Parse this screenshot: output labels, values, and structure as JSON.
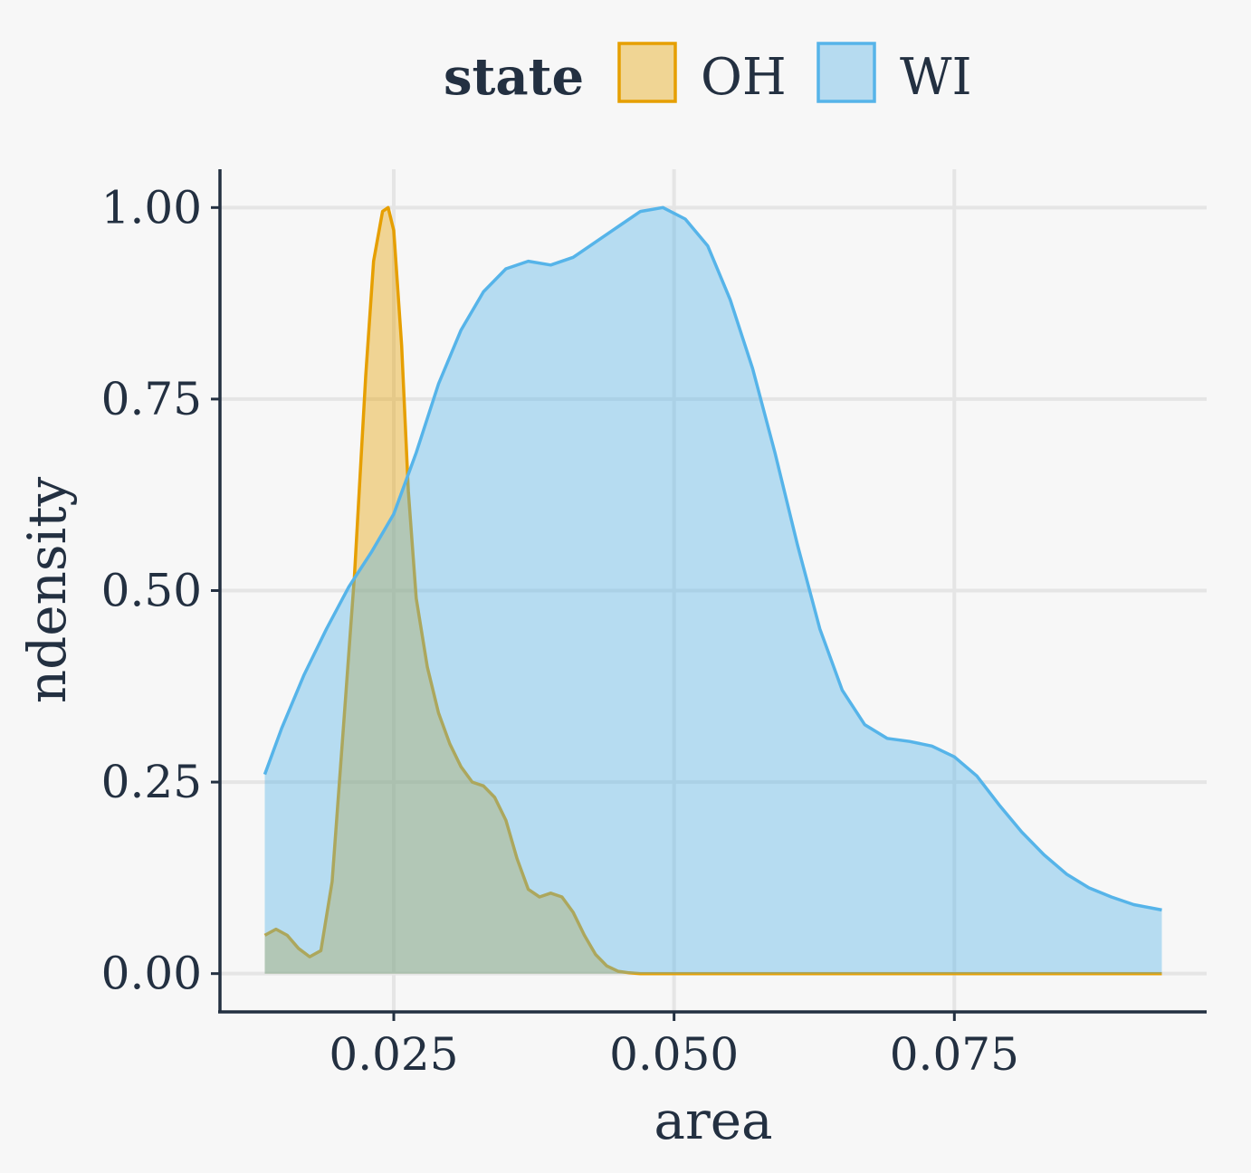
{
  "chart_data": {
    "type": "area",
    "xlabel": "area",
    "ylabel": "ndensity",
    "xlim": [
      0.0095,
      0.0975
    ],
    "ylim": [
      -0.05,
      1.05
    ],
    "x_ticks": [
      0.025,
      0.05,
      0.075
    ],
    "x_tick_labels": [
      "0.025",
      "0.050",
      "0.075"
    ],
    "y_ticks": [
      0,
      0.25,
      0.5,
      0.75,
      1.0
    ],
    "y_tick_labels": [
      "0.00",
      "0.25",
      "0.50",
      "0.75",
      "1.00"
    ],
    "grid": true,
    "legend": {
      "title": "state",
      "position": "top",
      "entries": [
        {
          "label": "OH",
          "fill": "#f0d594",
          "stroke": "#e69f00"
        },
        {
          "label": "WI",
          "fill": "#b6dbf0",
          "stroke": "#56b4e9"
        }
      ]
    },
    "series": [
      {
        "name": "OH",
        "fill": "#e69f00",
        "stroke": "#e69f00",
        "fill_opacity": 0.4,
        "x": [
          0.0135,
          0.0145,
          0.0155,
          0.0165,
          0.0175,
          0.0185,
          0.0195,
          0.0205,
          0.0215,
          0.0225,
          0.0232,
          0.024,
          0.0245,
          0.025,
          0.0257,
          0.0263,
          0.027,
          0.028,
          0.029,
          0.03,
          0.031,
          0.032,
          0.033,
          0.034,
          0.035,
          0.036,
          0.037,
          0.038,
          0.039,
          0.04,
          0.041,
          0.042,
          0.043,
          0.044,
          0.045,
          0.046,
          0.047,
          0.05,
          0.06,
          0.07,
          0.08,
          0.0935
        ],
        "y": [
          0.05,
          0.058,
          0.05,
          0.033,
          0.022,
          0.03,
          0.12,
          0.32,
          0.52,
          0.78,
          0.93,
          0.995,
          1.0,
          0.97,
          0.82,
          0.63,
          0.49,
          0.4,
          0.34,
          0.3,
          0.27,
          0.25,
          0.245,
          0.23,
          0.2,
          0.15,
          0.11,
          0.1,
          0.105,
          0.1,
          0.08,
          0.05,
          0.025,
          0.01,
          0.003,
          0.001,
          0.0,
          0.0,
          0.0,
          0.0,
          0.0,
          0.0
        ]
      },
      {
        "name": "WI",
        "fill": "#56b4e9",
        "stroke": "#56b4e9",
        "fill_opacity": 0.4,
        "x": [
          0.0135,
          0.015,
          0.017,
          0.019,
          0.021,
          0.023,
          0.025,
          0.027,
          0.029,
          0.031,
          0.033,
          0.035,
          0.037,
          0.039,
          0.041,
          0.043,
          0.045,
          0.047,
          0.049,
          0.051,
          0.053,
          0.055,
          0.057,
          0.059,
          0.061,
          0.063,
          0.065,
          0.067,
          0.069,
          0.071,
          0.073,
          0.075,
          0.077,
          0.079,
          0.081,
          0.083,
          0.085,
          0.087,
          0.089,
          0.091,
          0.0935
        ],
        "y": [
          0.26,
          0.32,
          0.39,
          0.45,
          0.505,
          0.55,
          0.6,
          0.68,
          0.77,
          0.84,
          0.89,
          0.92,
          0.93,
          0.925,
          0.935,
          0.955,
          0.975,
          0.995,
          1.0,
          0.985,
          0.95,
          0.88,
          0.79,
          0.68,
          0.56,
          0.45,
          0.37,
          0.325,
          0.307,
          0.303,
          0.297,
          0.283,
          0.258,
          0.22,
          0.185,
          0.155,
          0.13,
          0.112,
          0.1,
          0.09,
          0.083
        ]
      }
    ]
  }
}
